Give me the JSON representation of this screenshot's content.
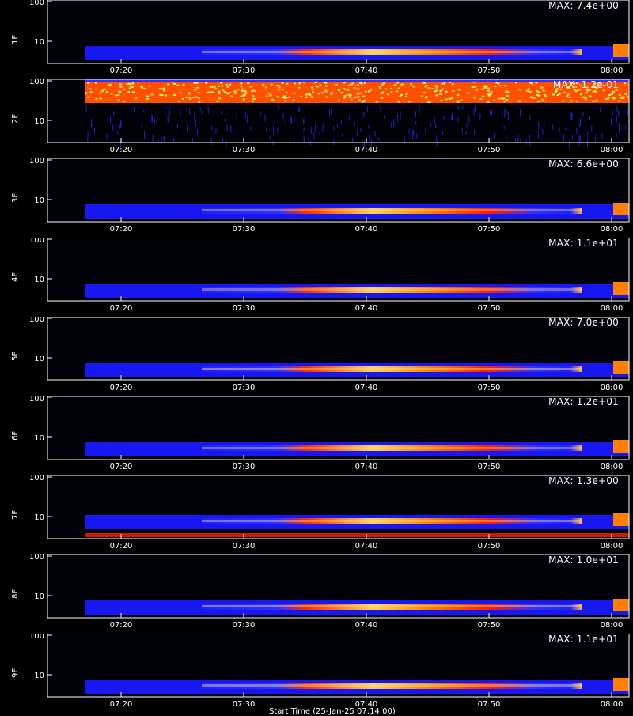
{
  "chart_data": [
    {
      "type": "heatmap",
      "panel": "1F",
      "max_label": "MAX: 7.4e+00",
      "yticks": [
        "100",
        "10"
      ],
      "xticks": [
        "07:20",
        "07:30",
        "07:40",
        "07:50",
        "08:00"
      ],
      "band": "low",
      "intensity": 0.8
    },
    {
      "type": "heatmap",
      "panel": "2F",
      "max_label": "MAX: 1.2e-01",
      "yticks": [
        "100",
        "10"
      ],
      "xticks": [
        "07:20",
        "07:30",
        "07:40",
        "07:50",
        "08:00"
      ],
      "band": "high",
      "intensity": 0.9
    },
    {
      "type": "heatmap",
      "panel": "3F",
      "max_label": "MAX: 6.6e+00",
      "yticks": [
        "100",
        "10"
      ],
      "xticks": [
        "07:20",
        "07:30",
        "07:40",
        "07:50",
        "08:00"
      ],
      "band": "low",
      "intensity": 0.75
    },
    {
      "type": "heatmap",
      "panel": "4F",
      "max_label": "MAX: 1.1e+01",
      "yticks": [
        "100",
        "10"
      ],
      "xticks": [
        "07:20",
        "07:30",
        "07:40",
        "07:50",
        "08:00"
      ],
      "band": "low",
      "intensity": 0.75
    },
    {
      "type": "heatmap",
      "panel": "5F",
      "max_label": "MAX: 7.0e+00",
      "yticks": [
        "100",
        "10"
      ],
      "xticks": [
        "07:20",
        "07:30",
        "07:40",
        "07:50",
        "08:00"
      ],
      "band": "low",
      "intensity": 0.95
    },
    {
      "type": "heatmap",
      "panel": "6F",
      "max_label": "MAX: 1.2e+01",
      "yticks": [
        "100",
        "10"
      ],
      "xticks": [
        "07:20",
        "07:30",
        "07:40",
        "07:50",
        "08:00"
      ],
      "band": "low",
      "intensity": 0.75
    },
    {
      "type": "heatmap",
      "panel": "7F",
      "max_label": "MAX: 1.3e+00",
      "yticks": [
        "100",
        "10"
      ],
      "xticks": [
        "07:20",
        "07:30",
        "07:40",
        "07:50",
        "08:00"
      ],
      "band": "mid",
      "intensity": 0.85
    },
    {
      "type": "heatmap",
      "panel": "8F",
      "max_label": "MAX: 1.0e+01",
      "yticks": [
        "100",
        "10"
      ],
      "xticks": [
        "07:20",
        "07:30",
        "07:40",
        "07:50",
        "08:00"
      ],
      "band": "low",
      "intensity": 0.9
    },
    {
      "type": "heatmap",
      "panel": "9F",
      "max_label": "MAX: 1.1e+01",
      "yticks": [
        "100",
        "10"
      ],
      "xticks": [
        "07:20",
        "07:30",
        "07:40",
        "07:50",
        "08:00"
      ],
      "band": "low",
      "intensity": 0.9
    }
  ],
  "footer_label": "Start Time (25-Jan-25 07:14:00)",
  "colors": {
    "background": "#000000",
    "axis": "#ffffff",
    "low": "#0000ff",
    "mid": "#ff0000",
    "high": "#ffff80"
  }
}
